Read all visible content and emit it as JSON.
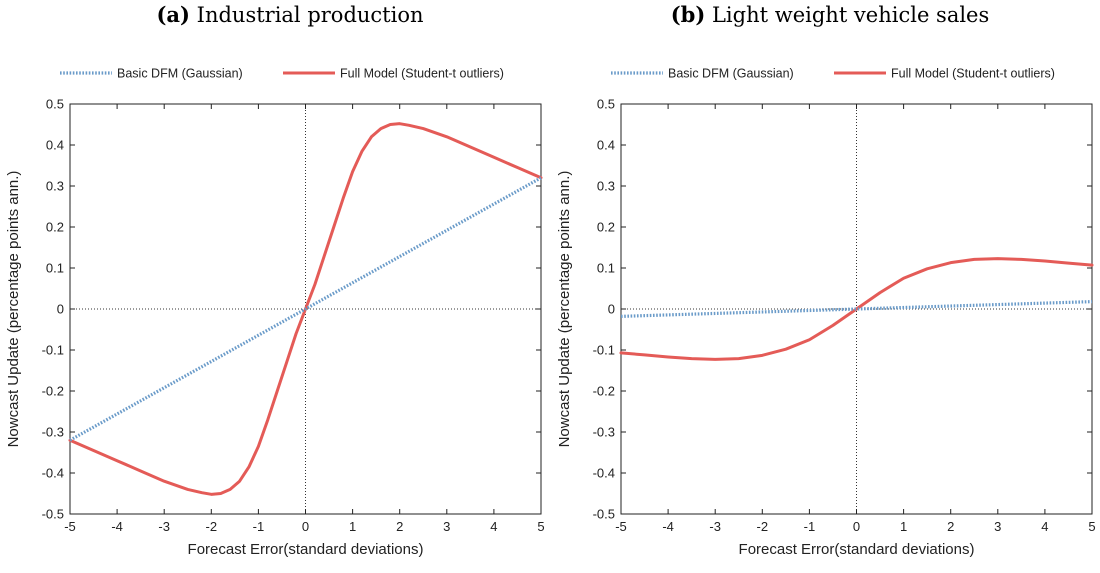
{
  "chart_data": [
    {
      "type": "line",
      "panel_tag": "(a)",
      "title": "Industrial production",
      "xlabel": "Forecast Error(standard deviations)",
      "ylabel": "Nowcast Update (percentage points ann.)",
      "xlim": [
        -5,
        5
      ],
      "ylim": [
        -0.5,
        0.5
      ],
      "xticks": [
        "-5",
        "-4",
        "-3",
        "-2",
        "-1",
        "0",
        "1",
        "2",
        "3",
        "4",
        "5"
      ],
      "yticks": [
        "-0.5",
        "-0.4",
        "-0.3",
        "-0.2",
        "-0.1",
        "0",
        "0.1",
        "0.2",
        "0.3",
        "0.4",
        "0.5"
      ],
      "legend_position": "top",
      "grid": false,
      "series": [
        {
          "name": "Basic DFM (Gaussian)",
          "style": "dotted",
          "color": "#6a9bc9",
          "x": [
            -5,
            5
          ],
          "y": [
            -0.32,
            0.32
          ]
        },
        {
          "name": "Full Model (Student-t outliers)",
          "style": "solid",
          "color": "#e45b57",
          "x": [
            -5,
            -4.5,
            -4,
            -3.5,
            -3,
            -2.5,
            -2.2,
            -2,
            -1.8,
            -1.6,
            -1.4,
            -1.2,
            -1,
            -0.8,
            -0.6,
            -0.4,
            -0.2,
            0,
            0.2,
            0.4,
            0.6,
            0.8,
            1,
            1.2,
            1.4,
            1.6,
            1.8,
            2,
            2.2,
            2.5,
            3,
            3.5,
            4,
            4.5,
            5
          ],
          "y": [
            -0.32,
            -0.345,
            -0.37,
            -0.395,
            -0.42,
            -0.44,
            -0.448,
            -0.452,
            -0.45,
            -0.44,
            -0.42,
            -0.385,
            -0.335,
            -0.27,
            -0.2,
            -0.13,
            -0.06,
            0,
            0.06,
            0.13,
            0.2,
            0.27,
            0.335,
            0.385,
            0.42,
            0.44,
            0.45,
            0.452,
            0.448,
            0.44,
            0.42,
            0.395,
            0.37,
            0.345,
            0.32
          ]
        }
      ]
    },
    {
      "type": "line",
      "panel_tag": "(b)",
      "title": "Light weight vehicle sales",
      "xlabel": "Forecast Error(standard deviations)",
      "ylabel": "Nowcast Update (percentage points ann.)",
      "xlim": [
        -5,
        5
      ],
      "ylim": [
        -0.5,
        0.5
      ],
      "xticks": [
        "-5",
        "-4",
        "-3",
        "-2",
        "-1",
        "0",
        "1",
        "2",
        "3",
        "4",
        "5"
      ],
      "yticks": [
        "-0.5",
        "-0.4",
        "-0.3",
        "-0.2",
        "-0.1",
        "0",
        "0.1",
        "0.2",
        "0.3",
        "0.4",
        "0.5"
      ],
      "legend_position": "top",
      "grid": false,
      "series": [
        {
          "name": "Basic DFM (Gaussian)",
          "style": "dotted",
          "color": "#6a9bc9",
          "x": [
            -5,
            5
          ],
          "y": [
            -0.018,
            0.018
          ]
        },
        {
          "name": "Full Model (Student-t outliers)",
          "style": "solid",
          "color": "#e45b57",
          "x": [
            -5,
            -4.5,
            -4,
            -3.5,
            -3,
            -2.5,
            -2,
            -1.5,
            -1,
            -0.5,
            0,
            0.5,
            1,
            1.5,
            2,
            2.5,
            3,
            3.5,
            4,
            4.5,
            5
          ],
          "y": [
            -0.107,
            -0.112,
            -0.117,
            -0.121,
            -0.123,
            -0.121,
            -0.113,
            -0.098,
            -0.075,
            -0.04,
            0,
            0.04,
            0.075,
            0.098,
            0.113,
            0.121,
            0.123,
            0.121,
            0.117,
            0.112,
            0.107
          ]
        }
      ]
    }
  ]
}
